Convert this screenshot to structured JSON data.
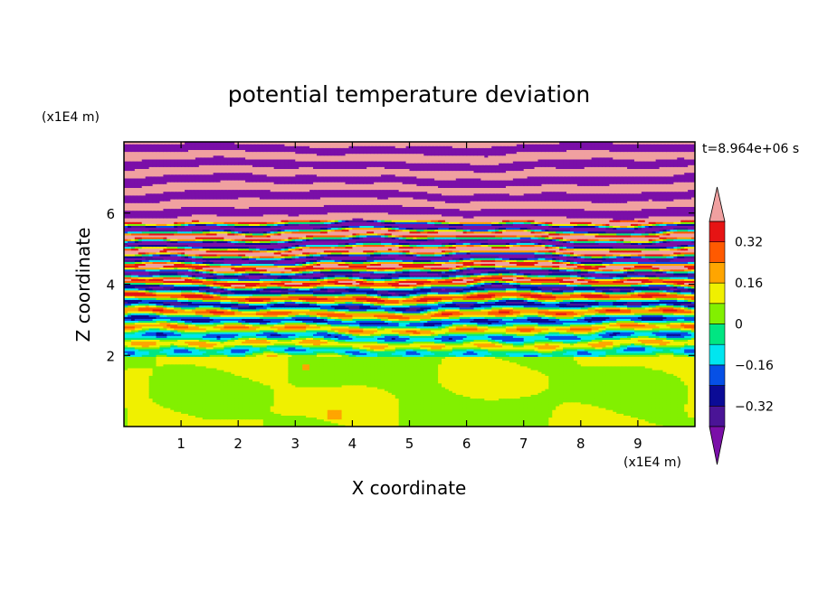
{
  "chart_data": {
    "type": "heatmap",
    "title": "potential temperature deviation",
    "xlabel": "X coordinate",
    "ylabel": "Z coordinate",
    "x_unit": "(x1E4 m)",
    "y_unit": "(x1E4 m)",
    "time_label": "t=8.964e+06 s",
    "xlim": [
      0,
      10
    ],
    "ylim": [
      0,
      8
    ],
    "x_ticks": [
      1,
      2,
      3,
      4,
      5,
      6,
      7,
      8,
      9
    ],
    "y_ticks": [
      2,
      4,
      6
    ],
    "colorbar": {
      "levels": [
        -0.48,
        -0.4,
        -0.32,
        -0.24,
        -0.16,
        -0.08,
        0,
        0.08,
        0.16,
        0.24,
        0.32,
        0.4,
        0.48
      ],
      "tick_labels": [
        "0.32",
        "0.16",
        "0",
        "−0.16",
        "−0.32"
      ],
      "tick_values": [
        0.32,
        0.16,
        0,
        -0.16,
        -0.32
      ],
      "colors": [
        "#7a0fa8",
        "#4a1496",
        "#0b0b96",
        "#0650e6",
        "#00e6f0",
        "#00e682",
        "#82f000",
        "#f0f000",
        "#ffa500",
        "#ff5a00",
        "#e61414",
        "#f0a0a0"
      ],
      "extend": "both"
    },
    "structure": {
      "lower_layer_top": 2.0,
      "lower_layer_values": [
        0.0,
        0.08
      ],
      "upper_layer_band_spacing": 0.22,
      "grid": false
    }
  }
}
